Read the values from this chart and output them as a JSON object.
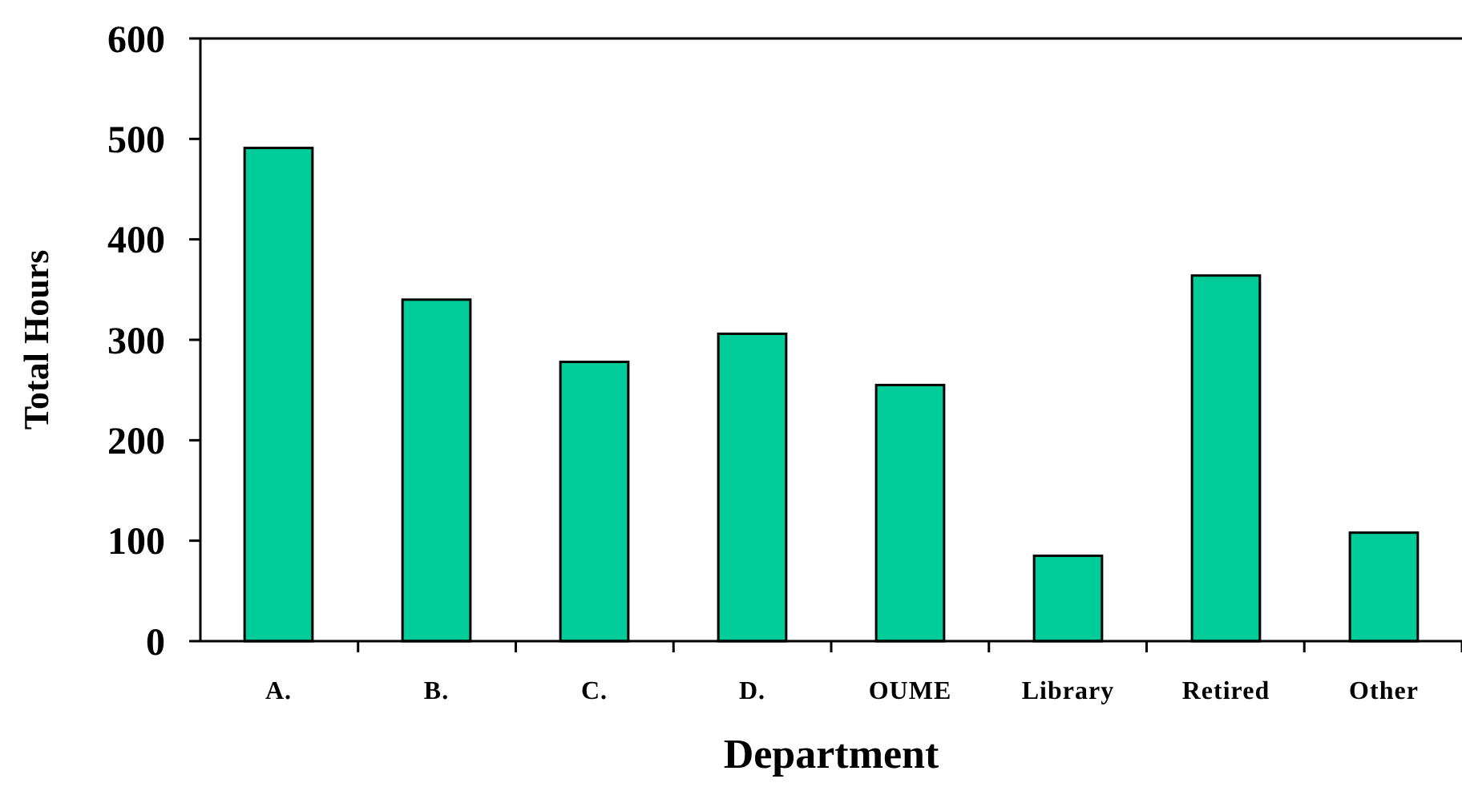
{
  "chart_data": {
    "type": "bar",
    "xlabel": "Department",
    "ylabel": "Total Hours",
    "categories": [
      "A.",
      "B.",
      "C.",
      "D.",
      "OUME",
      "Library",
      "Retired",
      "Other"
    ],
    "values": [
      491,
      340,
      278,
      306,
      255,
      85,
      364,
      108
    ],
    "color": "#00cc99",
    "ylim": [
      0,
      600
    ],
    "yticks": [
      0,
      100,
      200,
      300,
      400,
      500,
      600
    ],
    "grid": false
  }
}
